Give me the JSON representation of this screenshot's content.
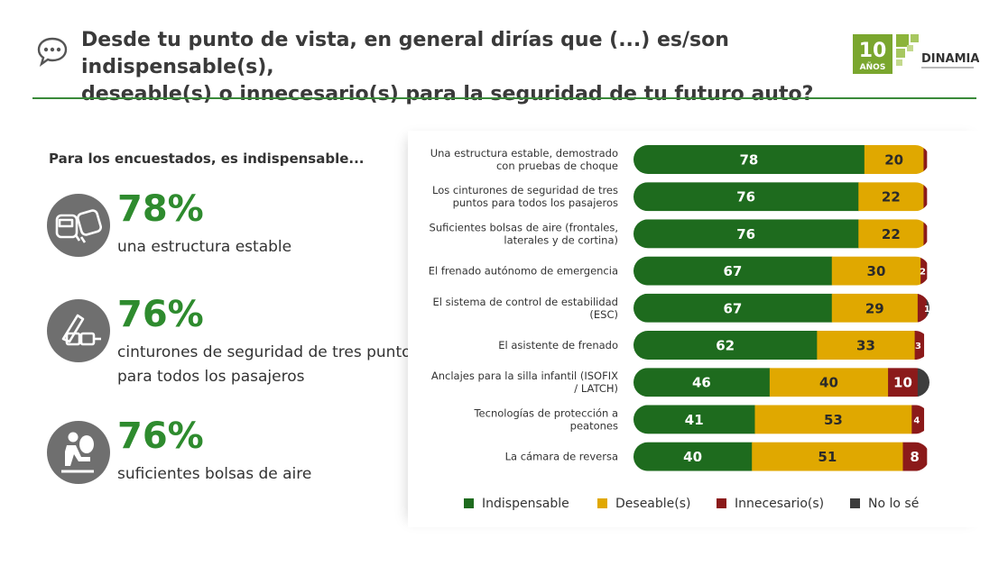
{
  "header": {
    "title_line1": "Desde tu punto de vista, en general dirías que (...) es/son indispensable(s),",
    "title_line2": "deseable(s) o innecesario(s) para la seguridad de tu futuro auto?",
    "logo_years": "10",
    "logo_years_word": "AÑOS",
    "logo_brand": "DINAMIA"
  },
  "icons": {
    "header": "chat-bubble-icon",
    "hl1": "car-crash-icon",
    "hl2": "seatbelt-icon",
    "hl3": "airbag-icon"
  },
  "left": {
    "subhead": "Para los encuestados, es indispensable...",
    "highlights": [
      {
        "pct": "78%",
        "desc": "una estructura estable"
      },
      {
        "pct": "76%",
        "desc": "cinturones de seguridad de tres puntos para todos los pasajeros"
      },
      {
        "pct": "76%",
        "desc": "suficientes bolsas de aire"
      }
    ]
  },
  "colors": {
    "indispensable": "#1e6b1e",
    "deseable": "#e0a800",
    "innecesario": "#8b1a1a",
    "nolose": "#3d3d3d",
    "accent": "#2e8b2e"
  },
  "chart_data": {
    "type": "bar",
    "orientation": "horizontal",
    "stacked": true,
    "categories": [
      [
        "Una estructura estable, demostrado",
        "con pruebas de choque"
      ],
      [
        "Los cinturones de seguridad de tres",
        "puntos para todos los pasajeros"
      ],
      [
        "Suficientes bolsas de aire (frontales,",
        "laterales y de cortina)"
      ],
      [
        "El frenado autónomo de emergencia"
      ],
      [
        "El sistema de control de estabilidad",
        "(ESC)"
      ],
      [
        "El asistente de frenado"
      ],
      [
        "Anclajes para la silla infantil    (ISOFIX",
        "/ LATCH)"
      ],
      [
        "Tecnologías de protección a",
        "peatones"
      ],
      [
        "La cámara de reversa"
      ]
    ],
    "series": [
      {
        "name": "Indispensable",
        "values": [
          78,
          76,
          76,
          67,
          67,
          62,
          46,
          41,
          40
        ]
      },
      {
        "name": "Deseable(s)",
        "values": [
          20,
          22,
          22,
          30,
          29,
          33,
          40,
          53,
          51
        ]
      },
      {
        "name": "Innecesario(s)",
        "values": [
          1,
          1,
          1,
          2,
          3,
          3,
          10,
          4,
          8
        ]
      },
      {
        "name": "No lo sé",
        "values": [
          0,
          0,
          0,
          0,
          1,
          0,
          4,
          0,
          0
        ]
      }
    ],
    "labels": [
      [
        "78",
        "20",
        "",
        ""
      ],
      [
        "76",
        "22",
        "",
        ""
      ],
      [
        "76",
        "22",
        "",
        ""
      ],
      [
        "67",
        "30",
        "2",
        ""
      ],
      [
        "67",
        "29",
        "",
        "1"
      ],
      [
        "62",
        "33",
        "3",
        ""
      ],
      [
        "46",
        "40",
        "10",
        ""
      ],
      [
        "41",
        "53",
        "4",
        ""
      ],
      [
        "40",
        "51",
        "8",
        ""
      ]
    ],
    "legend_position": "bottom",
    "grid": false
  }
}
